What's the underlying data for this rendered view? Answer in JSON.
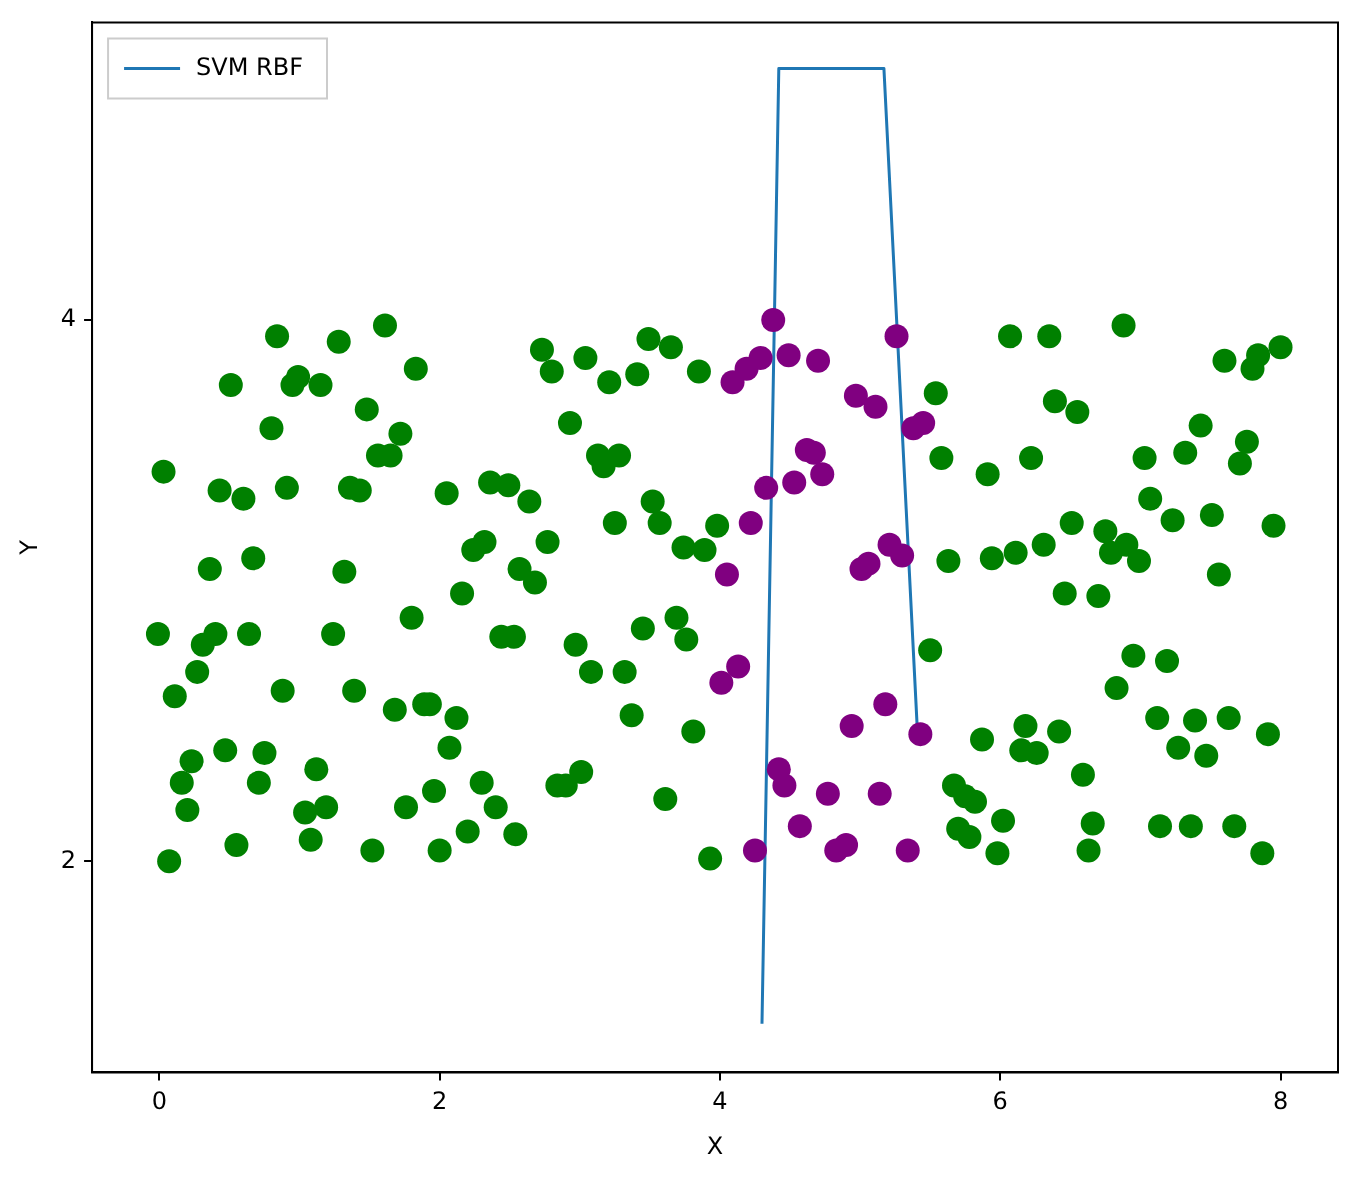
{
  "chart_data": {
    "type": "scatter",
    "xlabel": "X",
    "ylabel": "Y",
    "xlim": [
      -0.48,
      8.41
    ],
    "ylim": [
      1.22,
      5.1
    ],
    "xticks": [
      0,
      2,
      4,
      6,
      8
    ],
    "yticks": [
      2,
      4
    ],
    "grid": false,
    "legend": "top left",
    "series": [
      {
        "type": "scatter",
        "marker": "circle",
        "color": "#008000",
        "x": [
          0.84,
          1.61,
          1.28,
          0.51,
          0.99,
          0.95,
          1.15,
          1.83,
          1.48,
          0.8,
          1.72,
          1.56,
          1.65,
          0.03,
          0.43,
          0.6,
          0.91,
          1.36,
          1.43,
          2.05,
          2.36,
          2.49,
          0.36,
          0.67,
          1.32,
          2.32,
          2.24,
          2.16,
          2.57,
          2.73,
          2.8,
          3.04,
          3.21,
          3.49,
          3.65,
          3.41,
          3.85,
          2.93,
          3.13,
          3.28,
          3.17,
          2.64,
          2.77,
          2.68,
          3.25,
          3.52,
          3.57,
          3.74,
          3.89,
          3.98,
          -0.01,
          0.4,
          0.31,
          0.64,
          1.24,
          1.8,
          2.44,
          0.27,
          0.11,
          0.88,
          1.39,
          1.68,
          1.89,
          1.93,
          2.12,
          2.07,
          0.23,
          0.47,
          0.75,
          0.16,
          0.71,
          1.12,
          0.2,
          1.04,
          1.19,
          1.96,
          2.3,
          2.4,
          1.76,
          0.07,
          0.55,
          1.08,
          1.52,
          2.0,
          2.2,
          2.54,
          2.53,
          2.97,
          3.45,
          3.69,
          3.76,
          3.08,
          3.32,
          3.37,
          3.81,
          3.01,
          2.84,
          2.9,
          3.61,
          3.93,
          6.07,
          6.35,
          6.88,
          7.6,
          7.84,
          7.8,
          8.0,
          5.54,
          6.39,
          6.55,
          7.43,
          7.76,
          7.71,
          5.58,
          5.91,
          6.22,
          7.03,
          7.32,
          7.07,
          7.23,
          7.51,
          7.95,
          6.51,
          6.75,
          6.9,
          6.79,
          6.99,
          5.63,
          5.94,
          6.11,
          6.31,
          7.56,
          6.46,
          6.7,
          5.5,
          6.95,
          7.19,
          6.83,
          7.12,
          7.39,
          7.63,
          7.91,
          7.27,
          7.47,
          5.87,
          6.18,
          6.42,
          6.15,
          6.26,
          6.59,
          5.67,
          5.75,
          5.82,
          6.02,
          5.7,
          5.78,
          6.66,
          7.14,
          7.36,
          7.67,
          5.98,
          6.63,
          7.87
        ],
        "values": [
          3.94,
          3.98,
          3.92,
          3.76,
          3.79,
          3.76,
          3.76,
          3.82,
          3.67,
          3.6,
          3.58,
          3.5,
          3.5,
          3.44,
          3.37,
          3.34,
          3.38,
          3.38,
          3.37,
          3.36,
          3.4,
          3.39,
          3.08,
          3.12,
          3.07,
          3.18,
          3.15,
          2.99,
          3.08,
          3.89,
          3.81,
          3.86,
          3.77,
          3.93,
          3.9,
          3.8,
          3.81,
          3.62,
          3.5,
          3.5,
          3.46,
          3.33,
          3.18,
          3.03,
          3.25,
          3.33,
          3.25,
          3.16,
          3.15,
          3.24,
          2.84,
          2.84,
          2.8,
          2.84,
          2.84,
          2.9,
          2.83,
          2.7,
          2.61,
          2.63,
          2.63,
          2.56,
          2.58,
          2.58,
          2.53,
          2.42,
          2.37,
          2.41,
          2.4,
          2.29,
          2.29,
          2.34,
          2.19,
          2.18,
          2.2,
          2.26,
          2.29,
          2.2,
          2.2,
          2.0,
          2.06,
          2.08,
          2.04,
          2.04,
          2.11,
          2.1,
          2.83,
          2.8,
          2.86,
          2.9,
          2.82,
          2.7,
          2.7,
          2.54,
          2.48,
          2.33,
          2.28,
          2.28,
          2.23,
          2.01,
          3.94,
          3.94,
          3.98,
          3.85,
          3.87,
          3.82,
          3.9,
          3.73,
          3.7,
          3.66,
          3.61,
          3.55,
          3.47,
          3.49,
          3.43,
          3.49,
          3.49,
          3.51,
          3.34,
          3.26,
          3.28,
          3.24,
          3.25,
          3.22,
          3.17,
          3.14,
          3.11,
          3.11,
          3.12,
          3.14,
          3.17,
          3.06,
          2.99,
          2.98,
          2.78,
          2.76,
          2.74,
          2.64,
          2.53,
          2.52,
          2.53,
          2.47,
          2.42,
          2.39,
          2.45,
          2.5,
          2.48,
          2.41,
          2.4,
          2.32,
          2.28,
          2.24,
          2.22,
          2.15,
          2.12,
          2.09,
          2.14,
          2.13,
          2.13,
          2.13,
          2.03,
          2.04,
          2.03
        ]
      },
      {
        "type": "scatter",
        "marker": "circle",
        "color": "#800080",
        "x": [
          4.38,
          5.26,
          4.29,
          4.49,
          4.7,
          4.19,
          4.09,
          4.97,
          5.11,
          5.38,
          5.45,
          4.62,
          4.67,
          4.73,
          4.33,
          4.53,
          4.22,
          4.05,
          5.21,
          5.3,
          5.01,
          5.06,
          4.01,
          4.13,
          4.42,
          4.46,
          4.57,
          4.25,
          4.77,
          4.94,
          5.18,
          5.43,
          5.14,
          4.83,
          4.9,
          5.34
        ],
        "values": [
          4.0,
          3.94,
          3.86,
          3.87,
          3.85,
          3.82,
          3.77,
          3.72,
          3.68,
          3.6,
          3.62,
          3.52,
          3.51,
          3.43,
          3.38,
          3.4,
          3.25,
          3.06,
          3.17,
          3.13,
          3.08,
          3.1,
          2.66,
          2.72,
          2.34,
          2.28,
          2.13,
          2.04,
          2.25,
          2.5,
          2.58,
          2.47,
          2.25,
          2.04,
          2.06,
          2.04
        ]
      },
      {
        "type": "line",
        "marker": "none",
        "name": "SVM RBF",
        "color": "#1f77b4",
        "x": [
          4.3,
          4.42,
          5.17,
          5.41
        ],
        "values": [
          1.4,
          4.93,
          4.93,
          2.47
        ]
      }
    ]
  }
}
